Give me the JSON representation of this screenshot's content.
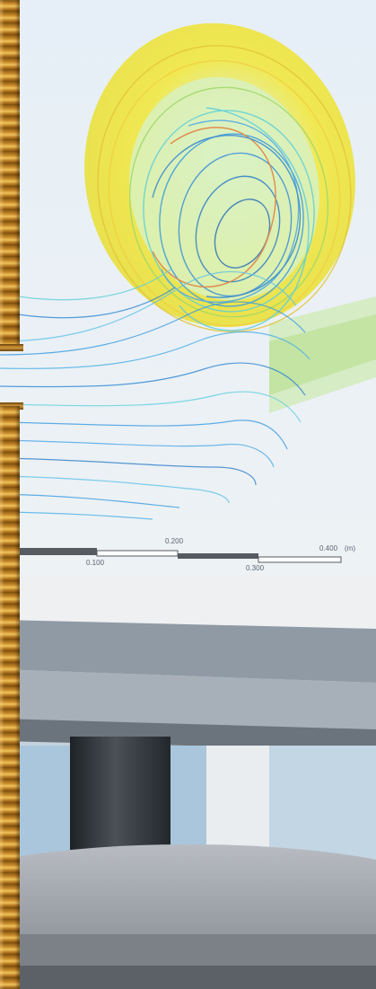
{
  "scale_bar": {
    "label_0200": "0.200",
    "label_0400": "0.400",
    "unit": "(m)",
    "label_0100": "0.100",
    "label_0300": "0.300"
  },
  "colors": {
    "background": "#e9edf1",
    "stream_blue": "#3a9be0",
    "stream_cyan": "#5fd0d8",
    "stream_yellow": "#e8e24a",
    "stream_green": "#9fd86a",
    "frame_gold": "#c7892a",
    "table_base": "#a9adb3",
    "pipe": "#2e3338"
  }
}
